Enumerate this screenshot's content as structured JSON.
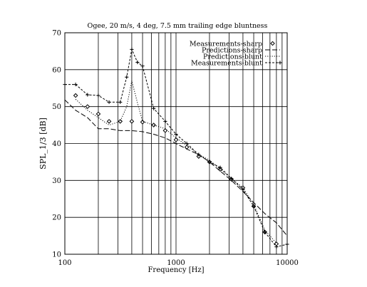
{
  "chart_data": {
    "type": "line",
    "title": "Ogee, 20 m/s, 4 deg, 7.5 mm trailing edge bluntness",
    "xlabel": "Frequency [Hz]",
    "ylabel": "SPL_1/3 [dB]",
    "xscale": "log",
    "xlim": [
      100,
      10000
    ],
    "ylim": [
      10,
      70
    ],
    "x_ticks": [
      100,
      1000,
      10000
    ],
    "x_tick_labels": [
      "100",
      "1000",
      "10000"
    ],
    "y_ticks": [
      10,
      20,
      30,
      40,
      50,
      60,
      70
    ],
    "y_tick_labels": [
      "10",
      "20",
      "30",
      "40",
      "50",
      "60",
      "70"
    ],
    "grid": "vertical log-decade lines and horizontal lines every 10 dB",
    "legend_position": "top-right",
    "series": [
      {
        "name": "Measurements-sharp",
        "style": "diamond markers",
        "x": [
          125,
          160,
          200,
          250,
          315,
          400,
          500,
          630,
          800,
          1000,
          1250,
          1600,
          2000,
          2500,
          3150,
          4000,
          5000,
          6300,
          8000
        ],
        "y": [
          53,
          50,
          48,
          46,
          46,
          46,
          45.8,
          45,
          43.5,
          41,
          39,
          36.5,
          35,
          33,
          30.3,
          28,
          23,
          16,
          12.8
        ]
      },
      {
        "name": "Predictions-sharp",
        "style": "long-dash line",
        "x": [
          100,
          125,
          160,
          200,
          250,
          315,
          400,
          500,
          630,
          800,
          1000,
          1250,
          1600,
          2000,
          2500,
          3150,
          4000,
          5000,
          6300,
          8000,
          10000
        ],
        "y": [
          51.8,
          49,
          47,
          44,
          44,
          43.5,
          43.5,
          43.2,
          42.5,
          41.5,
          40,
          38.5,
          37,
          35,
          32.5,
          30,
          27,
          24,
          21,
          18.5,
          15
        ]
      },
      {
        "name": "Predictions-blunt",
        "style": "dotted line",
        "x": [
          125,
          160,
          200,
          250,
          315,
          360,
          400,
          450,
          500,
          630,
          800,
          1000,
          1250,
          1600,
          2000,
          2500,
          3150,
          4000,
          5000,
          6300,
          8000
        ],
        "y": [
          52,
          49,
          47,
          45,
          46,
          50,
          57,
          51,
          46,
          45,
          44,
          41.5,
          39.5,
          37,
          35.5,
          33,
          30.5,
          28,
          23.5,
          16.5,
          13
        ]
      },
      {
        "name": "Measurements-blunt",
        "style": "short-dash line with plus markers",
        "x": [
          100,
          125,
          160,
          200,
          250,
          315,
          360,
          400,
          450,
          500,
          630,
          800,
          1000,
          1250,
          1600,
          2000,
          2500,
          3150,
          4000,
          5000,
          6300,
          8000,
          10000
        ],
        "y": [
          56,
          56,
          53.2,
          53,
          51.2,
          51.2,
          58,
          65.5,
          62,
          61,
          49.5,
          46,
          42.5,
          40,
          37,
          35,
          33.5,
          30.5,
          27.5,
          23,
          16,
          12,
          12.7
        ]
      }
    ]
  },
  "colors": {
    "background": "#ffffff",
    "ink": "#000000"
  }
}
